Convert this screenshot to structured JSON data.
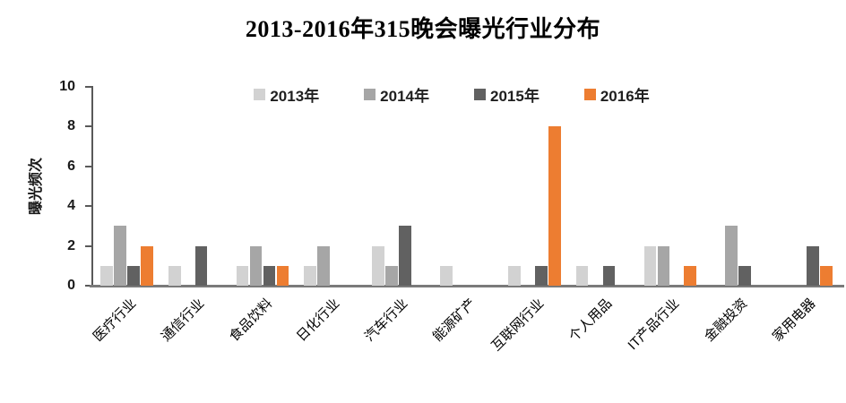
{
  "title": "2013-2016年315晚会曝光行业分布",
  "chart_data": {
    "type": "bar",
    "title": "2013-2016年315晚会曝光行业分布",
    "xlabel": "",
    "ylabel": "曝光频次",
    "ylim": [
      0,
      10
    ],
    "yticks": [
      0,
      2,
      4,
      6,
      8,
      10
    ],
    "grid": false,
    "legend_position": "top-center-inside",
    "categories": [
      "医疗行业",
      "通信行业",
      "食品饮料",
      "日化行业",
      "汽车行业",
      "能源矿产",
      "互联网行业",
      "个人用品",
      "IT产品行业",
      "金融投资",
      "家用电器"
    ],
    "series": [
      {
        "name": "2013年",
        "color": "#D2D2D2",
        "values": [
          1,
          1,
          1,
          1,
          2,
          1,
          1,
          1,
          2,
          0,
          0
        ]
      },
      {
        "name": "2014年",
        "color": "#A6A6A6",
        "values": [
          3,
          0,
          2,
          2,
          1,
          0,
          0,
          0,
          2,
          3,
          0
        ]
      },
      {
        "name": "2015年",
        "color": "#616161",
        "values": [
          1,
          2,
          1,
          0,
          3,
          0,
          1,
          1,
          0,
          1,
          2
        ]
      },
      {
        "name": "2016年",
        "color": "#ED7D31",
        "values": [
          2,
          0,
          1,
          0,
          0,
          0,
          8,
          0,
          1,
          0,
          1
        ]
      }
    ]
  },
  "axis_colors": {
    "y_axis": "#595959",
    "x_axis": "#7a7a7a"
  }
}
